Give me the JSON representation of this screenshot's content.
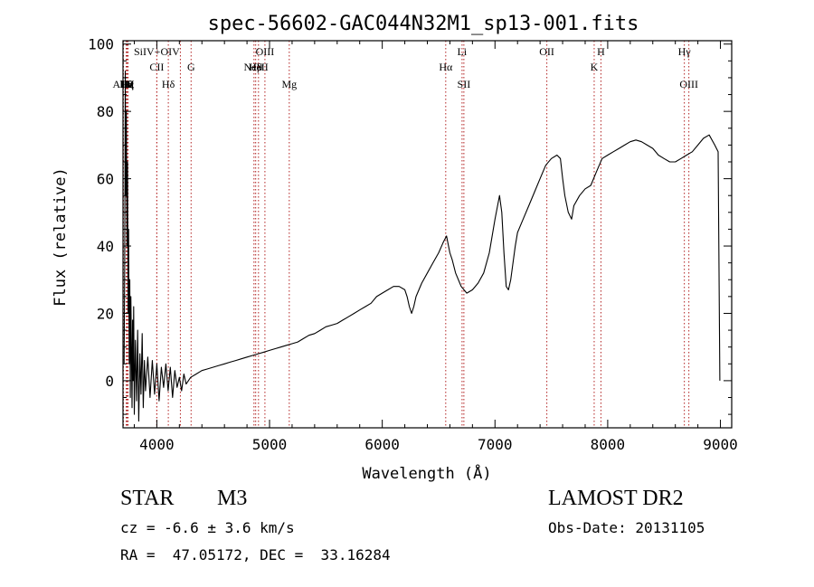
{
  "chart_data": {
    "type": "line",
    "title": "spec-56602-GAC044N32M1_sp13-001.fits",
    "xlabel": "Wavelength (Å)",
    "ylabel": "Flux (relative)",
    "xlim": [
      3700,
      9100
    ],
    "ylim": [
      -14,
      101
    ],
    "x_ticks": [
      4000,
      5000,
      6000,
      7000,
      8000,
      9000
    ],
    "y_ticks": [
      0,
      20,
      40,
      60,
      80,
      100
    ],
    "grid": false,
    "series": [
      {
        "color": "#000000",
        "points": [
          [
            3710,
            5
          ],
          [
            3715,
            35
          ],
          [
            3720,
            92
          ],
          [
            3725,
            55
          ],
          [
            3730,
            80
          ],
          [
            3735,
            40
          ],
          [
            3740,
            65
          ],
          [
            3745,
            20
          ],
          [
            3750,
            45
          ],
          [
            3755,
            5
          ],
          [
            3760,
            30
          ],
          [
            3765,
            -5
          ],
          [
            3770,
            25
          ],
          [
            3775,
            10
          ],
          [
            3780,
            -8
          ],
          [
            3785,
            18
          ],
          [
            3790,
            0
          ],
          [
            3795,
            22
          ],
          [
            3800,
            -10
          ],
          [
            3810,
            12
          ],
          [
            3820,
            -6
          ],
          [
            3830,
            15
          ],
          [
            3840,
            -12
          ],
          [
            3850,
            8
          ],
          [
            3860,
            -4
          ],
          [
            3870,
            14
          ],
          [
            3880,
            -8
          ],
          [
            3890,
            6
          ],
          [
            3900,
            -3
          ],
          [
            3920,
            7
          ],
          [
            3940,
            -5
          ],
          [
            3960,
            6
          ],
          [
            3980,
            -4
          ],
          [
            4000,
            5
          ],
          [
            4020,
            -6
          ],
          [
            4040,
            4
          ],
          [
            4060,
            -2
          ],
          [
            4080,
            5
          ],
          [
            4100,
            -3
          ],
          [
            4120,
            4
          ],
          [
            4140,
            -5
          ],
          [
            4160,
            3
          ],
          [
            4180,
            -2
          ],
          [
            4200,
            1
          ],
          [
            4220,
            -3
          ],
          [
            4240,
            2
          ],
          [
            4260,
            -1
          ],
          [
            4280,
            0
          ],
          [
            4300,
            1
          ],
          [
            4350,
            2
          ],
          [
            4400,
            3
          ],
          [
            4450,
            3.5
          ],
          [
            4500,
            4
          ],
          [
            4550,
            4.5
          ],
          [
            4600,
            5
          ],
          [
            4650,
            5.5
          ],
          [
            4700,
            6
          ],
          [
            4750,
            6.5
          ],
          [
            4800,
            7
          ],
          [
            4850,
            7.5
          ],
          [
            4900,
            8
          ],
          [
            4950,
            8.5
          ],
          [
            5000,
            9
          ],
          [
            5050,
            9.5
          ],
          [
            5100,
            10
          ],
          [
            5150,
            10.5
          ],
          [
            5200,
            11
          ],
          [
            5250,
            11.5
          ],
          [
            5300,
            12.5
          ],
          [
            5350,
            13.5
          ],
          [
            5400,
            14
          ],
          [
            5450,
            15
          ],
          [
            5500,
            16
          ],
          [
            5550,
            16.5
          ],
          [
            5600,
            17
          ],
          [
            5650,
            18
          ],
          [
            5700,
            19
          ],
          [
            5750,
            20
          ],
          [
            5800,
            21
          ],
          [
            5850,
            22
          ],
          [
            5900,
            23
          ],
          [
            5950,
            25
          ],
          [
            6000,
            26
          ],
          [
            6050,
            27
          ],
          [
            6100,
            28
          ],
          [
            6150,
            28
          ],
          [
            6200,
            27
          ],
          [
            6220,
            25
          ],
          [
            6240,
            22
          ],
          [
            6260,
            20
          ],
          [
            6280,
            22
          ],
          [
            6300,
            25
          ],
          [
            6350,
            29
          ],
          [
            6400,
            32
          ],
          [
            6450,
            35
          ],
          [
            6500,
            38
          ],
          [
            6540,
            41
          ],
          [
            6570,
            43
          ],
          [
            6600,
            38
          ],
          [
            6620,
            36
          ],
          [
            6650,
            32
          ],
          [
            6700,
            28
          ],
          [
            6750,
            26
          ],
          [
            6800,
            27
          ],
          [
            6850,
            29
          ],
          [
            6900,
            32
          ],
          [
            6950,
            38
          ],
          [
            7000,
            48
          ],
          [
            7040,
            55
          ],
          [
            7060,
            50
          ],
          [
            7080,
            38
          ],
          [
            7100,
            28
          ],
          [
            7120,
            27
          ],
          [
            7140,
            30
          ],
          [
            7160,
            35
          ],
          [
            7180,
            40
          ],
          [
            7200,
            44
          ],
          [
            7250,
            48
          ],
          [
            7300,
            52
          ],
          [
            7350,
            56
          ],
          [
            7400,
            60
          ],
          [
            7450,
            64
          ],
          [
            7500,
            66
          ],
          [
            7550,
            67
          ],
          [
            7580,
            66
          ],
          [
            7600,
            60
          ],
          [
            7620,
            55
          ],
          [
            7650,
            50
          ],
          [
            7680,
            48
          ],
          [
            7700,
            52
          ],
          [
            7750,
            55
          ],
          [
            7800,
            57
          ],
          [
            7850,
            58
          ],
          [
            7900,
            62
          ],
          [
            7950,
            66
          ],
          [
            8000,
            67
          ],
          [
            8050,
            68
          ],
          [
            8100,
            69
          ],
          [
            8150,
            70
          ],
          [
            8200,
            71
          ],
          [
            8250,
            71.5
          ],
          [
            8300,
            71
          ],
          [
            8350,
            70
          ],
          [
            8400,
            69
          ],
          [
            8450,
            67
          ],
          [
            8500,
            66
          ],
          [
            8550,
            65
          ],
          [
            8600,
            65
          ],
          [
            8650,
            66
          ],
          [
            8700,
            67
          ],
          [
            8750,
            68
          ],
          [
            8800,
            70
          ],
          [
            8850,
            72
          ],
          [
            8900,
            73
          ],
          [
            8950,
            70
          ],
          [
            8980,
            68
          ],
          [
            8995,
            0
          ]
        ]
      }
    ],
    "line_markers": [
      {
        "wavelength": 3704,
        "label": "AlIII",
        "row": 3
      },
      {
        "wavelength": 3728,
        "label": "Hθ",
        "row": 3
      },
      {
        "wavelength": 3736,
        "label": "Hη",
        "row": 3
      },
      {
        "wavelength": 3740,
        "label": "Hζ",
        "row": 3
      },
      {
        "wavelength": 3745,
        "label": "Hε",
        "row": 3
      },
      {
        "wavelength": 4000,
        "label": "SiIV+OIV",
        "row": 1
      },
      {
        "wavelength": 4000,
        "label": "CII",
        "row": 2
      },
      {
        "wavelength": 4102,
        "label": "Hδ",
        "row": 3
      },
      {
        "wavelength": 4209,
        "label": "",
        "row": 0
      },
      {
        "wavelength": 4304,
        "label": "G",
        "row": 2
      },
      {
        "wavelength": 4862,
        "label": "NeV",
        "row": 2
      },
      {
        "wavelength": 4877,
        "label": "Hβ",
        "row": 2
      },
      {
        "wavelength": 4902,
        "label": "HeII",
        "row": 2
      },
      {
        "wavelength": 4959,
        "label": "OIII",
        "row": 1
      },
      {
        "wavelength": 5175,
        "label": "Mg",
        "row": 3
      },
      {
        "wavelength": 6563,
        "label": "Hα",
        "row": 2
      },
      {
        "wavelength": 6708,
        "label": "Li",
        "row": 1
      },
      {
        "wavelength": 6724,
        "label": "SII",
        "row": 3
      },
      {
        "wavelength": 7460,
        "label": "OII",
        "row": 1
      },
      {
        "wavelength": 7880,
        "label": "K",
        "row": 2
      },
      {
        "wavelength": 7940,
        "label": "H",
        "row": 1
      },
      {
        "wavelength": 8680,
        "label": "Hγ",
        "row": 1
      },
      {
        "wavelength": 8720,
        "label": "OIII",
        "row": 3
      }
    ]
  },
  "info": {
    "class_label": "STAR",
    "subclass": "M3",
    "velocity": "cz = -6.6 ± 3.6 km/s",
    "coords": "RA =  47.05172, DEC =  33.16284",
    "survey": "LAMOST DR2",
    "obs_date": "Obs-Date: 20131105"
  }
}
